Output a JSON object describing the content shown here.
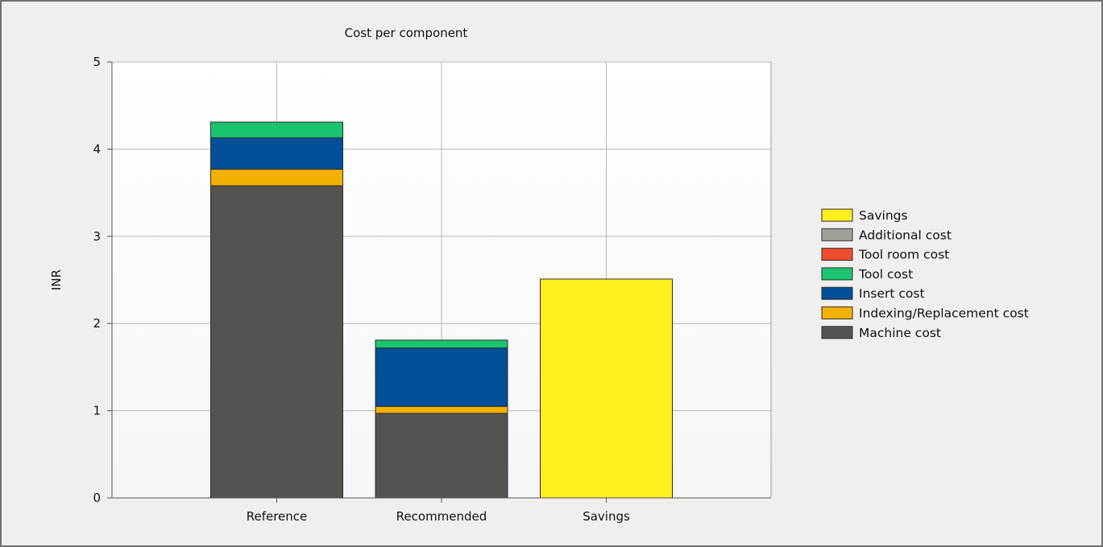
{
  "chart_data": {
    "type": "bar",
    "stacked": true,
    "title": "Cost per component",
    "xlabel": "",
    "ylabel": "INR",
    "ylim": [
      0,
      5
    ],
    "yticks": [
      "0",
      "1",
      "2",
      "3",
      "4",
      "5"
    ],
    "categories": [
      "Reference",
      "Recommended",
      "Savings"
    ],
    "grid": true,
    "legend_position": "right",
    "series": [
      {
        "name": "Machine cost",
        "color": "#555350",
        "values": [
          3.58,
          0.97,
          0
        ]
      },
      {
        "name": "Indexing/Replacement cost",
        "color": "#f2b100",
        "values": [
          0.19,
          0.08,
          0
        ]
      },
      {
        "name": "Insert cost",
        "color": "#004f98",
        "values": [
          0.36,
          0.67,
          0
        ]
      },
      {
        "name": "Tool cost",
        "color": "#1bc46f",
        "values": [
          0.18,
          0.09,
          0
        ]
      },
      {
        "name": "Tool room cost",
        "color": "#ee4c2c",
        "values": [
          0,
          0,
          0
        ]
      },
      {
        "name": "Additional cost",
        "color": "#a19f98",
        "values": [
          0,
          0,
          0
        ]
      },
      {
        "name": "Savings",
        "color": "#ffef1e",
        "values": [
          0,
          0,
          2.51
        ]
      }
    ],
    "legend_order": [
      "Savings",
      "Additional cost",
      "Tool room cost",
      "Tool cost",
      "Insert cost",
      "Indexing/Replacement cost",
      "Machine cost"
    ]
  }
}
